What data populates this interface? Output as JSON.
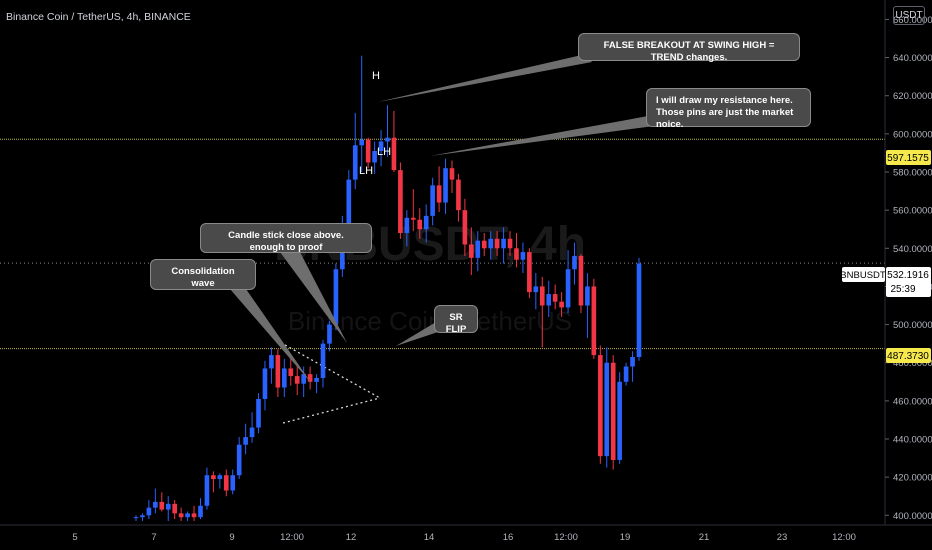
{
  "header": {
    "title": "Binance Coin / TetherUS, 4h, BINANCE",
    "currency_button": "USDT"
  },
  "watermark": {
    "symbol": "BNBUSDT, 4h",
    "description": "Binance Coin / TetherUS"
  },
  "annotations": {
    "false_breakout": "FALSE BREAKOUT AT SWING HIGH = TREND changes.",
    "resistance_line1": "I will draw my resistance here.",
    "resistance_line2": "Those pins are just the market noice.",
    "candle_close": "Candle stick close above. enough to proof",
    "consolidation": "Consolidation wave",
    "sr_flip": "SR FLIP"
  },
  "price_tags": {
    "resistance": "597.1575",
    "current_symbol": "BNBUSDT",
    "current_price": "532.1916",
    "countdown": "25:39",
    "support": "487.3730"
  },
  "colors": {
    "background": "#000000",
    "up_candle": "#2962ff",
    "down_candle": "#f23645",
    "level_line": "#c9b84a",
    "price_tag": "#f5e94c",
    "axis_text": "#b2b5be"
  },
  "chart_data": {
    "type": "candlestick",
    "timeframe": "4h",
    "symbol": "BNBUSDT",
    "y_ticks": [
      "400.0000",
      "420.0000",
      "440.0000",
      "460.0000",
      "480.0000",
      "500.0000",
      "520.0000",
      "540.0000",
      "560.0000",
      "580.0000",
      "600.0000",
      "620.0000",
      "640.0000",
      "660.0000"
    ],
    "x_ticks": [
      "5",
      "7",
      "9",
      "12:00",
      "12",
      "14",
      "16",
      "12:00",
      "19",
      "21",
      "23",
      "12:00"
    ],
    "ylim": [
      397,
      666
    ],
    "levels": [
      {
        "name": "resistance",
        "price": 597.1575
      },
      {
        "name": "support",
        "price": 487.373
      }
    ],
    "swing_labels": [
      {
        "text": "H",
        "price": 641
      },
      {
        "text": "LH",
        "price": 600
      },
      {
        "text": "LH",
        "price": 594
      }
    ],
    "last_price": 532.1916,
    "candles": [
      {
        "o": 399,
        "h": 400,
        "l": 397,
        "c": 399
      },
      {
        "o": 399,
        "h": 401,
        "l": 397,
        "c": 400
      },
      {
        "o": 400,
        "h": 408,
        "l": 398,
        "c": 404
      },
      {
        "o": 404,
        "h": 414,
        "l": 401,
        "c": 407
      },
      {
        "o": 407,
        "h": 412,
        "l": 402,
        "c": 403
      },
      {
        "o": 403,
        "h": 410,
        "l": 397,
        "c": 406
      },
      {
        "o": 406,
        "h": 408,
        "l": 398,
        "c": 401
      },
      {
        "o": 401,
        "h": 404,
        "l": 397,
        "c": 399
      },
      {
        "o": 399,
        "h": 402,
        "l": 397,
        "c": 401
      },
      {
        "o": 401,
        "h": 405,
        "l": 397,
        "c": 399
      },
      {
        "o": 399,
        "h": 409,
        "l": 398,
        "c": 405
      },
      {
        "o": 405,
        "h": 425,
        "l": 403,
        "c": 421
      },
      {
        "o": 421,
        "h": 423,
        "l": 412,
        "c": 419
      },
      {
        "o": 419,
        "h": 422,
        "l": 414,
        "c": 421
      },
      {
        "o": 421,
        "h": 424,
        "l": 410,
        "c": 413
      },
      {
        "o": 413,
        "h": 424,
        "l": 411,
        "c": 421
      },
      {
        "o": 421,
        "h": 441,
        "l": 419,
        "c": 437
      },
      {
        "o": 437,
        "h": 448,
        "l": 432,
        "c": 441
      },
      {
        "o": 441,
        "h": 454,
        "l": 438,
        "c": 446
      },
      {
        "o": 446,
        "h": 464,
        "l": 443,
        "c": 461
      },
      {
        "o": 461,
        "h": 481,
        "l": 455,
        "c": 477
      },
      {
        "o": 477,
        "h": 488,
        "l": 469,
        "c": 484
      },
      {
        "o": 484,
        "h": 487,
        "l": 462,
        "c": 467
      },
      {
        "o": 467,
        "h": 482,
        "l": 462,
        "c": 477
      },
      {
        "o": 477,
        "h": 483,
        "l": 468,
        "c": 473
      },
      {
        "o": 473,
        "h": 478,
        "l": 463,
        "c": 469
      },
      {
        "o": 469,
        "h": 478,
        "l": 462,
        "c": 474
      },
      {
        "o": 474,
        "h": 478,
        "l": 466,
        "c": 470
      },
      {
        "o": 470,
        "h": 474,
        "l": 464,
        "c": 472
      },
      {
        "o": 472,
        "h": 492,
        "l": 467,
        "c": 490
      },
      {
        "o": 490,
        "h": 502,
        "l": 486,
        "c": 500
      },
      {
        "o": 500,
        "h": 532,
        "l": 497,
        "c": 529
      },
      {
        "o": 529,
        "h": 557,
        "l": 525,
        "c": 550
      },
      {
        "o": 550,
        "h": 581,
        "l": 545,
        "c": 576
      },
      {
        "o": 576,
        "h": 611,
        "l": 571,
        "c": 594
      },
      {
        "o": 594,
        "h": 641,
        "l": 580,
        "c": 597
      },
      {
        "o": 597,
        "h": 598,
        "l": 582,
        "c": 585
      },
      {
        "o": 585,
        "h": 596,
        "l": 579,
        "c": 591
      },
      {
        "o": 591,
        "h": 602,
        "l": 583,
        "c": 596
      },
      {
        "o": 596,
        "h": 615,
        "l": 588,
        "c": 598
      },
      {
        "o": 598,
        "h": 612,
        "l": 580,
        "c": 581
      },
      {
        "o": 581,
        "h": 585,
        "l": 545,
        "c": 548
      },
      {
        "o": 548,
        "h": 560,
        "l": 541,
        "c": 556
      },
      {
        "o": 556,
        "h": 571,
        "l": 549,
        "c": 555
      },
      {
        "o": 555,
        "h": 561,
        "l": 545,
        "c": 550
      },
      {
        "o": 550,
        "h": 563,
        "l": 543,
        "c": 557
      },
      {
        "o": 557,
        "h": 577,
        "l": 552,
        "c": 573
      },
      {
        "o": 573,
        "h": 583,
        "l": 559,
        "c": 564
      },
      {
        "o": 564,
        "h": 587,
        "l": 558,
        "c": 582
      },
      {
        "o": 582,
        "h": 586,
        "l": 569,
        "c": 576
      },
      {
        "o": 576,
        "h": 579,
        "l": 554,
        "c": 560
      },
      {
        "o": 560,
        "h": 566,
        "l": 536,
        "c": 542
      },
      {
        "o": 542,
        "h": 551,
        "l": 526,
        "c": 535
      },
      {
        "o": 535,
        "h": 549,
        "l": 528,
        "c": 544
      },
      {
        "o": 544,
        "h": 548,
        "l": 536,
        "c": 540
      },
      {
        "o": 540,
        "h": 549,
        "l": 534,
        "c": 545
      },
      {
        "o": 545,
        "h": 549,
        "l": 536,
        "c": 540
      },
      {
        "o": 540,
        "h": 551,
        "l": 532,
        "c": 545
      },
      {
        "o": 545,
        "h": 549,
        "l": 536,
        "c": 540
      },
      {
        "o": 540,
        "h": 548,
        "l": 530,
        "c": 534
      },
      {
        "o": 534,
        "h": 543,
        "l": 527,
        "c": 538
      },
      {
        "o": 538,
        "h": 540,
        "l": 514,
        "c": 517
      },
      {
        "o": 517,
        "h": 527,
        "l": 508,
        "c": 520
      },
      {
        "o": 520,
        "h": 525,
        "l": 488,
        "c": 510
      },
      {
        "o": 510,
        "h": 523,
        "l": 504,
        "c": 516
      },
      {
        "o": 516,
        "h": 521,
        "l": 508,
        "c": 512
      },
      {
        "o": 512,
        "h": 517,
        "l": 504,
        "c": 509
      },
      {
        "o": 509,
        "h": 539,
        "l": 506,
        "c": 529
      },
      {
        "o": 529,
        "h": 543,
        "l": 521,
        "c": 536
      },
      {
        "o": 536,
        "h": 537,
        "l": 506,
        "c": 510
      },
      {
        "o": 510,
        "h": 527,
        "l": 493,
        "c": 520
      },
      {
        "o": 520,
        "h": 524,
        "l": 482,
        "c": 484
      },
      {
        "o": 484,
        "h": 489,
        "l": 427,
        "c": 431
      },
      {
        "o": 431,
        "h": 488,
        "l": 425,
        "c": 480
      },
      {
        "o": 480,
        "h": 484,
        "l": 424,
        "c": 429
      },
      {
        "o": 429,
        "h": 475,
        "l": 427,
        "c": 470
      },
      {
        "o": 470,
        "h": 480,
        "l": 468,
        "c": 478
      },
      {
        "o": 478,
        "h": 486,
        "l": 470,
        "c": 483
      },
      {
        "o": 483,
        "h": 535,
        "l": 481,
        "c": 532
      }
    ]
  }
}
